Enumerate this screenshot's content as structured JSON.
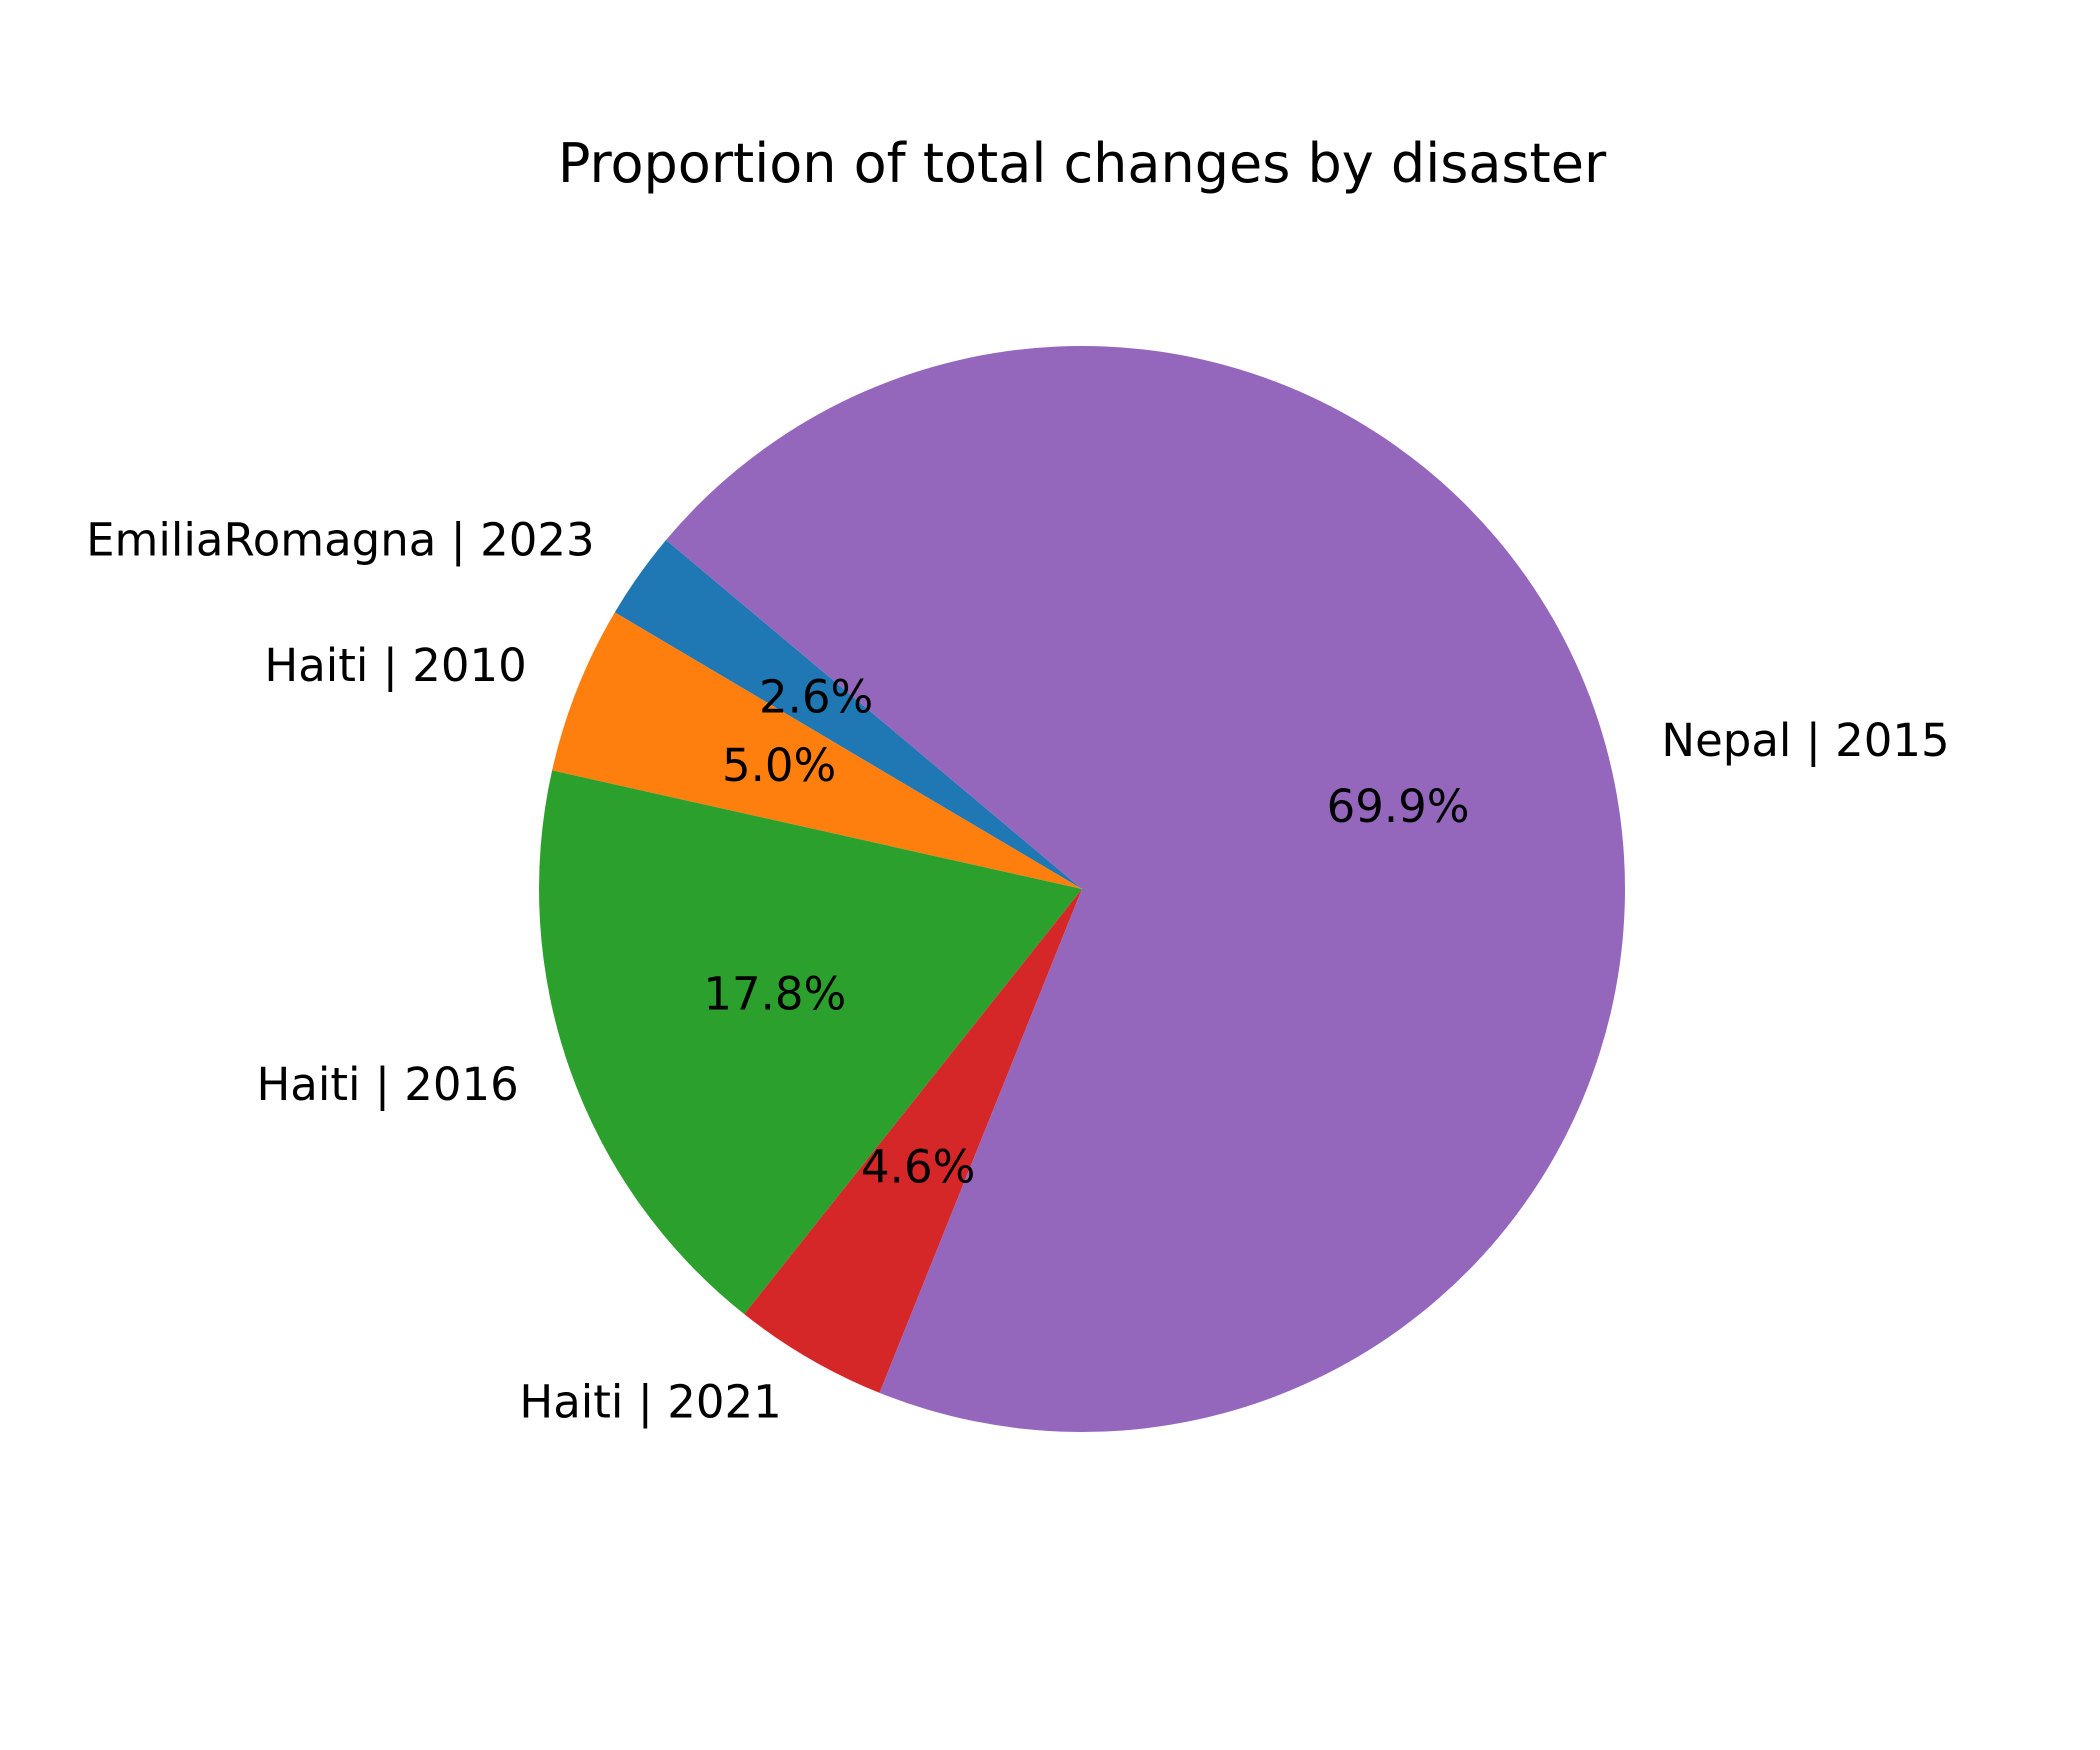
{
  "chart_data": {
    "type": "pie",
    "title": "Proportion of total changes by disaster",
    "start_angle_deg": 140,
    "direction": "counterclockwise",
    "legend": "none",
    "slices": [
      {
        "label": "EmiliaRomagna | 2023",
        "value": 2.6,
        "pct_text": "2.6%",
        "color": "#1f77b4"
      },
      {
        "label": "Haiti | 2010",
        "value": 5.0,
        "pct_text": "5.0%",
        "color": "#ff7f0e"
      },
      {
        "label": "Haiti | 2016",
        "value": 17.8,
        "pct_text": "17.8%",
        "color": "#2ca02c"
      },
      {
        "label": "Haiti | 2021",
        "value": 4.6,
        "pct_text": "4.6%",
        "color": "#d62728"
      },
      {
        "label": "Nepal | 2015",
        "value": 69.9,
        "pct_text": "69.9%",
        "color": "#9467bd"
      }
    ]
  }
}
